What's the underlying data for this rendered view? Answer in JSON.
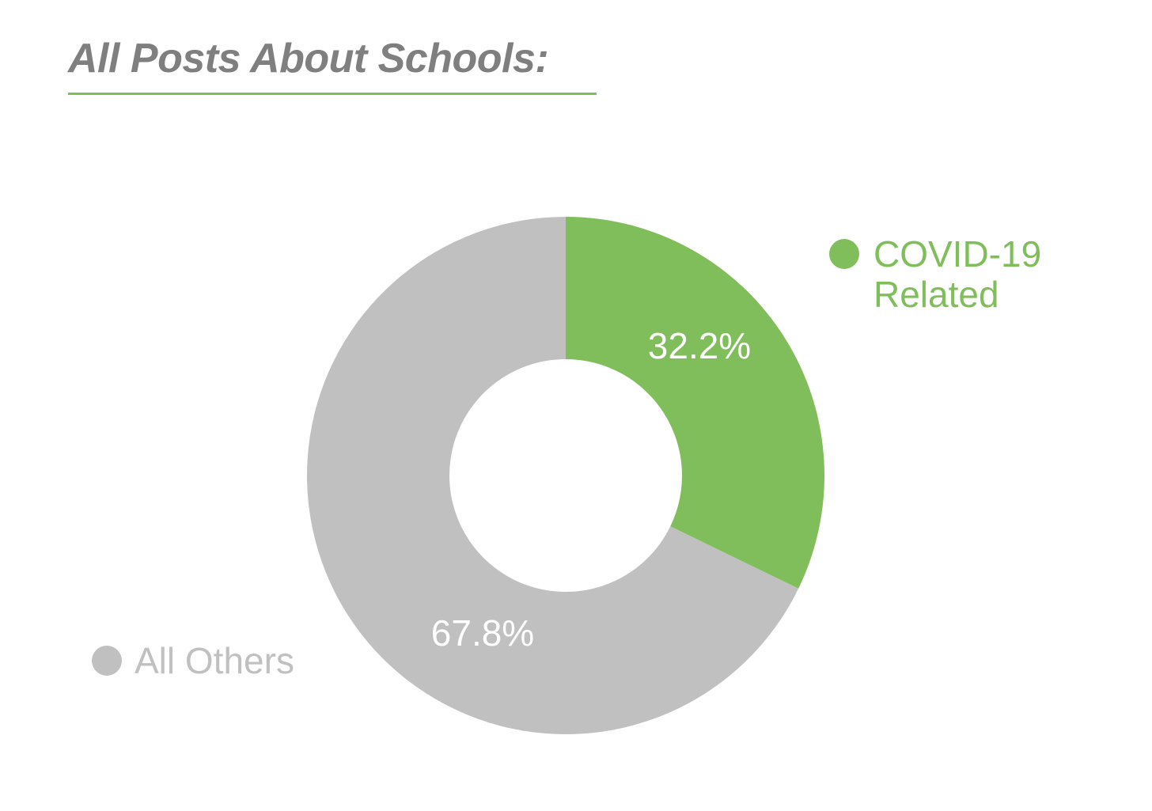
{
  "chart_data": {
    "type": "pie",
    "donut": true,
    "title": "All Posts About Schools:",
    "slices": [
      {
        "label": "COVID-19 Related",
        "label_lines": [
          "COVID-19",
          "Related"
        ],
        "value": 32.2,
        "value_label": "32.2%",
        "color": "#7fbe5a"
      },
      {
        "label": "All Others",
        "label_lines": [
          "All Others"
        ],
        "value": 67.8,
        "value_label": "67.8%",
        "color": "#c0c0c0"
      }
    ],
    "legend_placement": "beside-slices"
  },
  "colors": {
    "title": "#7f7f7f",
    "title_rule": "#7fbe5a",
    "background": "#ffffff"
  }
}
